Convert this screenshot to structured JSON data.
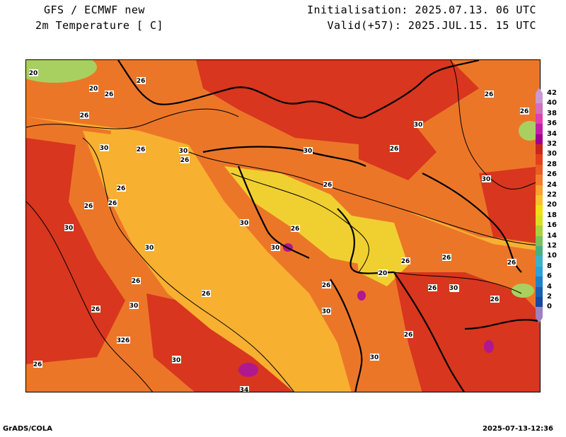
{
  "header": {
    "title_line1": "GFS / ECMWF new",
    "title_line2": "2m Temperature [ C]",
    "init_line": "Initialisation: 2025.07.13. 06 UTC",
    "valid_line": "Valid(+57): 2025.JUL.15. 15 UTC"
  },
  "footer": {
    "left": "GrADS/COLA",
    "right": "2025-07-13-12:36"
  },
  "legend": {
    "levels": [
      "42",
      "40",
      "38",
      "36",
      "34",
      "32",
      "30",
      "28",
      "26",
      "24",
      "22",
      "20",
      "18",
      "16",
      "14",
      "12",
      "10",
      "8",
      "6",
      "4",
      "2",
      "0"
    ],
    "colors": {
      "42": "#c89ad0",
      "40": "#d070c0",
      "38": "#e040b0",
      "36": "#c020a8",
      "34": "#a00090",
      "32": "#c8281c",
      "30": "#e0401c",
      "28": "#e85c24",
      "26": "#f07c30",
      "24": "#f8a030",
      "22": "#f8c030",
      "20": "#f0e010",
      "18": "#d8e020",
      "16": "#a8d040",
      "14": "#78c060",
      "12": "#48b080",
      "10": "#40b0c8",
      "8": "#30a0d8",
      "6": "#2080c8",
      "4": "#1860b0",
      "2": "#1848a0",
      "0": "#a080c0"
    }
  },
  "map": {
    "colors": {
      "sea": "#f8b030",
      "land_warm": "#ec7628",
      "land_hot": "#d8361e",
      "land_mild": "#f4a030",
      "highland": "#f0d030",
      "extreme": "#b01890",
      "cool": "#a8d060",
      "border": "#000000"
    },
    "contour_labels": [
      {
        "v": "20"
      },
      {
        "v": "20"
      },
      {
        "v": "26"
      },
      {
        "v": "26"
      },
      {
        "v": "26"
      },
      {
        "v": "30"
      },
      {
        "v": "26"
      },
      {
        "v": "30"
      },
      {
        "v": "26"
      },
      {
        "v": "26"
      },
      {
        "v": "26"
      },
      {
        "v": "30"
      },
      {
        "v": "30"
      },
      {
        "v": "26"
      },
      {
        "v": "30"
      },
      {
        "v": "26"
      },
      {
        "v": "30"
      },
      {
        "v": "26"
      },
      {
        "v": "30"
      },
      {
        "v": "26"
      },
      {
        "v": "26"
      },
      {
        "v": "30"
      },
      {
        "v": "26"
      },
      {
        "v": "26"
      },
      {
        "v": "26"
      },
      {
        "v": "30"
      },
      {
        "v": "30"
      },
      {
        "v": "26"
      },
      {
        "v": "26"
      },
      {
        "v": "20"
      },
      {
        "v": "26"
      },
      {
        "v": "26"
      },
      {
        "v": "26"
      },
      {
        "v": "30"
      },
      {
        "v": "26"
      },
      {
        "v": "26"
      },
      {
        "v": "30"
      },
      {
        "v": "30"
      },
      {
        "v": "30"
      },
      {
        "v": "26"
      },
      {
        "v": "26"
      },
      {
        "v": "30"
      },
      {
        "v": "26"
      },
      {
        "v": "30"
      },
      {
        "v": "30"
      },
      {
        "v": "26"
      },
      {
        "v": "26"
      },
      {
        "v": "30"
      },
      {
        "v": "34"
      },
      {
        "v": "26"
      }
    ]
  }
}
